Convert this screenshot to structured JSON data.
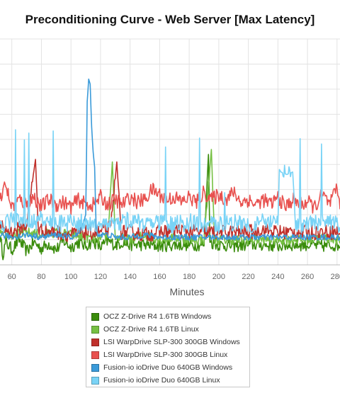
{
  "chart_data": {
    "type": "line",
    "title": "Preconditioning Curve - Web Server [Max Latency]",
    "xlabel": "Minutes",
    "ylabel": "",
    "xlim": [
      52,
      282
    ],
    "ylim": [
      0,
      9
    ],
    "x_ticks": [
      60,
      80,
      100,
      120,
      140,
      160,
      180,
      200,
      220,
      240,
      260,
      280
    ],
    "grid": true,
    "legend_position": "bottom-center",
    "series": [
      {
        "name": "OCZ Z-Drive R4 1.6TB Windows",
        "color": "#3a8c0c",
        "keypoints": [
          [
            52,
            1.1
          ],
          [
            54,
            0.45
          ],
          [
            56,
            0.9
          ],
          [
            60,
            0.6
          ],
          [
            65,
            1.0
          ],
          [
            70,
            0.55
          ],
          [
            75,
            0.9
          ],
          [
            80,
            0.65
          ],
          [
            85,
            0.85
          ],
          [
            90,
            0.6
          ],
          [
            95,
            0.95
          ],
          [
            100,
            0.7
          ],
          [
            105,
            0.9
          ],
          [
            110,
            0.75
          ],
          [
            115,
            0.95
          ],
          [
            120,
            0.7
          ],
          [
            125,
            0.95
          ],
          [
            130,
            0.8
          ],
          [
            135,
            0.9
          ],
          [
            140,
            0.8
          ],
          [
            150,
            0.8
          ],
          [
            160,
            0.75
          ],
          [
            170,
            0.8
          ],
          [
            180,
            0.8
          ],
          [
            190,
            0.8
          ],
          [
            193,
            4.4
          ],
          [
            194,
            0.9
          ],
          [
            200,
            0.8
          ],
          [
            210,
            0.75
          ],
          [
            220,
            0.8
          ],
          [
            230,
            0.8
          ],
          [
            240,
            0.75
          ],
          [
            250,
            0.8
          ],
          [
            260,
            0.8
          ],
          [
            270,
            0.75
          ],
          [
            282,
            0.8
          ]
        ],
        "noise": 0.25,
        "spikes": 0
      },
      {
        "name": "OCZ Z-Drive R4 1.6TB Linux",
        "color": "#76c043",
        "keypoints": [
          [
            52,
            1.4
          ],
          [
            60,
            1.2
          ],
          [
            70,
            1.3
          ],
          [
            80,
            1.2
          ],
          [
            90,
            1.3
          ],
          [
            100,
            1.2
          ],
          [
            110,
            1.1
          ],
          [
            120,
            1.0
          ],
          [
            125,
            1.2
          ],
          [
            128,
            4.1
          ],
          [
            130,
            1.1
          ],
          [
            140,
            1.0
          ],
          [
            150,
            1.2
          ],
          [
            160,
            1.0
          ],
          [
            170,
            1.1
          ],
          [
            180,
            1.0
          ],
          [
            190,
            1.0
          ],
          [
            195,
            4.6
          ],
          [
            197,
            1.0
          ],
          [
            200,
            1.0
          ],
          [
            210,
            1.0
          ],
          [
            220,
            1.0
          ],
          [
            230,
            1.0
          ],
          [
            240,
            1.0
          ],
          [
            250,
            1.0
          ],
          [
            260,
            1.0
          ],
          [
            270,
            1.1
          ],
          [
            282,
            1.0
          ]
        ],
        "noise": 0.2,
        "spikes": 0
      },
      {
        "name": "LSI WarpDrive SLP-300 300GB Windows",
        "color": "#c0302b",
        "keypoints": [
          [
            52,
            1.5
          ],
          [
            60,
            1.3
          ],
          [
            70,
            1.6
          ],
          [
            76,
            4.2
          ],
          [
            78,
            1.4
          ],
          [
            90,
            1.3
          ],
          [
            100,
            1.2
          ],
          [
            110,
            1.3
          ],
          [
            120,
            1.3
          ],
          [
            127,
            1.5
          ],
          [
            131,
            4.1
          ],
          [
            134,
            1.3
          ],
          [
            140,
            1.3
          ],
          [
            150,
            1.2
          ],
          [
            160,
            1.3
          ],
          [
            170,
            1.4
          ],
          [
            180,
            1.3
          ],
          [
            190,
            1.3
          ],
          [
            200,
            1.3
          ],
          [
            210,
            1.3
          ],
          [
            220,
            1.3
          ],
          [
            230,
            1.4
          ],
          [
            240,
            1.3
          ],
          [
            250,
            1.3
          ],
          [
            260,
            1.3
          ],
          [
            270,
            1.3
          ],
          [
            282,
            1.3
          ]
        ],
        "noise": 0.3,
        "spikes": 0
      },
      {
        "name": "LSI WarpDrive SLP-300 300GB Linux",
        "color": "#e8514f",
        "keypoints": [
          [
            52,
            2.5
          ],
          [
            55,
            3.3
          ],
          [
            60,
            2.3
          ],
          [
            65,
            2.6
          ],
          [
            70,
            2.4
          ],
          [
            75,
            2.7
          ],
          [
            80,
            2.3
          ],
          [
            85,
            2.6
          ],
          [
            90,
            2.4
          ],
          [
            95,
            2.5
          ],
          [
            100,
            2.3
          ],
          [
            105,
            2.6
          ],
          [
            110,
            2.4
          ],
          [
            115,
            2.4
          ],
          [
            120,
            2.7
          ],
          [
            125,
            2.4
          ],
          [
            130,
            2.6
          ],
          [
            135,
            2.4
          ],
          [
            140,
            2.7
          ],
          [
            145,
            2.5
          ],
          [
            150,
            2.6
          ],
          [
            155,
            3.0
          ],
          [
            160,
            2.8
          ],
          [
            165,
            2.6
          ],
          [
            170,
            2.7
          ],
          [
            175,
            2.5
          ],
          [
            180,
            2.7
          ],
          [
            185,
            2.5
          ],
          [
            190,
            2.9
          ],
          [
            195,
            2.6
          ],
          [
            200,
            2.8
          ],
          [
            205,
            2.6
          ],
          [
            210,
            2.9
          ],
          [
            215,
            2.5
          ],
          [
            220,
            2.6
          ],
          [
            225,
            2.4
          ],
          [
            230,
            2.6
          ],
          [
            235,
            2.4
          ],
          [
            240,
            2.7
          ],
          [
            245,
            2.3
          ],
          [
            250,
            2.6
          ],
          [
            255,
            2.4
          ],
          [
            260,
            2.5
          ],
          [
            265,
            2.3
          ],
          [
            270,
            2.8
          ],
          [
            275,
            2.4
          ],
          [
            280,
            3.0
          ],
          [
            282,
            2.4
          ]
        ],
        "noise": 0.3,
        "spikes": 0
      },
      {
        "name": "Fusion-io ioDrive Duo 640GB Windows",
        "color": "#3a9ad9",
        "keypoints": [
          [
            52,
            1.2
          ],
          [
            60,
            1.1
          ],
          [
            70,
            1.2
          ],
          [
            80,
            1.1
          ],
          [
            90,
            1.2
          ],
          [
            100,
            1.1
          ],
          [
            105,
            1.2
          ],
          [
            110,
            2.0
          ],
          [
            111,
            6.5
          ],
          [
            112,
            7.4
          ],
          [
            113,
            7.2
          ],
          [
            114,
            5.5
          ],
          [
            115,
            4.5
          ],
          [
            116,
            3.9
          ],
          [
            117,
            1.5
          ],
          [
            118,
            1.2
          ],
          [
            125,
            1.2
          ],
          [
            130,
            1.1
          ],
          [
            140,
            1.1
          ],
          [
            150,
            1.2
          ],
          [
            160,
            1.1
          ],
          [
            170,
            1.1
          ],
          [
            180,
            1.1
          ],
          [
            190,
            1.1
          ],
          [
            200,
            1.1
          ],
          [
            210,
            1.1
          ],
          [
            220,
            1.1
          ],
          [
            230,
            1.1
          ],
          [
            240,
            1.1
          ],
          [
            250,
            1.1
          ],
          [
            260,
            1.1
          ],
          [
            270,
            1.1
          ],
          [
            282,
            1.1
          ]
        ],
        "noise": 0.12,
        "spikes": 0
      },
      {
        "name": "Fusion-io ioDrive Duo 640GB Linux",
        "color": "#79d3f6",
        "keypoints": [
          [
            52,
            1.5
          ],
          [
            60,
            1.8
          ],
          [
            70,
            1.6
          ],
          [
            80,
            1.8
          ],
          [
            90,
            1.6
          ],
          [
            100,
            1.7
          ],
          [
            110,
            1.5
          ],
          [
            120,
            1.7
          ],
          [
            130,
            1.6
          ],
          [
            140,
            1.8
          ],
          [
            150,
            1.6
          ],
          [
            160,
            1.7
          ],
          [
            170,
            1.6
          ],
          [
            180,
            1.7
          ],
          [
            190,
            1.6
          ],
          [
            200,
            1.6
          ],
          [
            210,
            1.7
          ],
          [
            220,
            1.6
          ],
          [
            230,
            1.7
          ],
          [
            240,
            1.6
          ],
          [
            241,
            3.8
          ],
          [
            242,
            3.7
          ],
          [
            246,
            3.6
          ],
          [
            250,
            3.7
          ],
          [
            252,
            1.6
          ],
          [
            260,
            1.6
          ],
          [
            270,
            1.7
          ],
          [
            282,
            1.6
          ]
        ],
        "noise": 0.35,
        "spikes": 0.32,
        "spike_max": 5.4
      }
    ]
  },
  "legend": {
    "items": [
      {
        "label": "OCZ Z-Drive R4 1.6TB Windows",
        "color": "#3a8c0c"
      },
      {
        "label": "OCZ Z-Drive R4 1.6TB Linux",
        "color": "#76c043"
      },
      {
        "label": "LSI WarpDrive SLP-300 300GB Windows",
        "color": "#c0302b"
      },
      {
        "label": "LSI WarpDrive SLP-300 300GB Linux",
        "color": "#e8514f"
      },
      {
        "label": "Fusion-io ioDrive Duo 640GB Windows",
        "color": "#3a9ad9"
      },
      {
        "label": "Fusion-io ioDrive Duo 640GB Linux",
        "color": "#79d3f6"
      }
    ]
  }
}
